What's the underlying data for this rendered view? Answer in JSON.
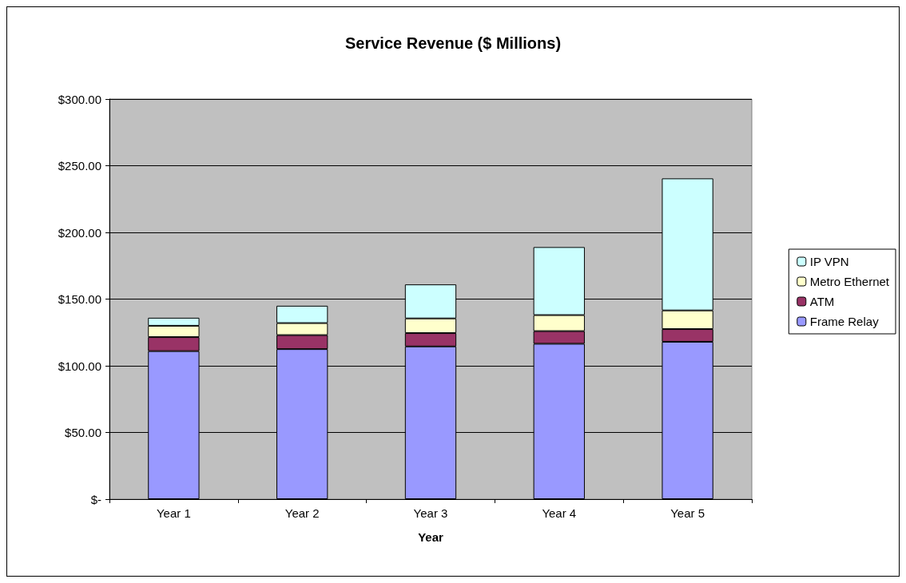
{
  "chart_data": {
    "type": "bar",
    "title": "Service Revenue ($ Millions)",
    "xlabel": "Year",
    "stacked": true,
    "categories": [
      "Year 1",
      "Year 2",
      "Year 3",
      "Year 4",
      "Year 5"
    ],
    "series": [
      {
        "name": "Frame Relay",
        "color": "#9999ff",
        "values": [
          111,
          112.5,
          114.5,
          116.5,
          118
        ]
      },
      {
        "name": "ATM",
        "color": "#993366",
        "values": [
          10.5,
          10.5,
          10,
          9.5,
          9.5
        ]
      },
      {
        "name": "Metro Ethernet",
        "color": "#ffffcc",
        "values": [
          8.5,
          9,
          11,
          12,
          14
        ]
      },
      {
        "name": "IP VPN",
        "color": "#ccffff",
        "values": [
          6,
          13,
          25.5,
          51,
          99
        ]
      }
    ],
    "ylim": [
      0,
      300
    ],
    "yticks": [
      {
        "value": 0,
        "label": "$-"
      },
      {
        "value": 50,
        "label": "$50.00"
      },
      {
        "value": 100,
        "label": "$100.00"
      },
      {
        "value": 150,
        "label": "$150.00"
      },
      {
        "value": 200,
        "label": "$200.00"
      },
      {
        "value": 250,
        "label": "$250.00"
      },
      {
        "value": 300,
        "label": "$300.00"
      }
    ],
    "grid": "y",
    "legend": "right"
  }
}
